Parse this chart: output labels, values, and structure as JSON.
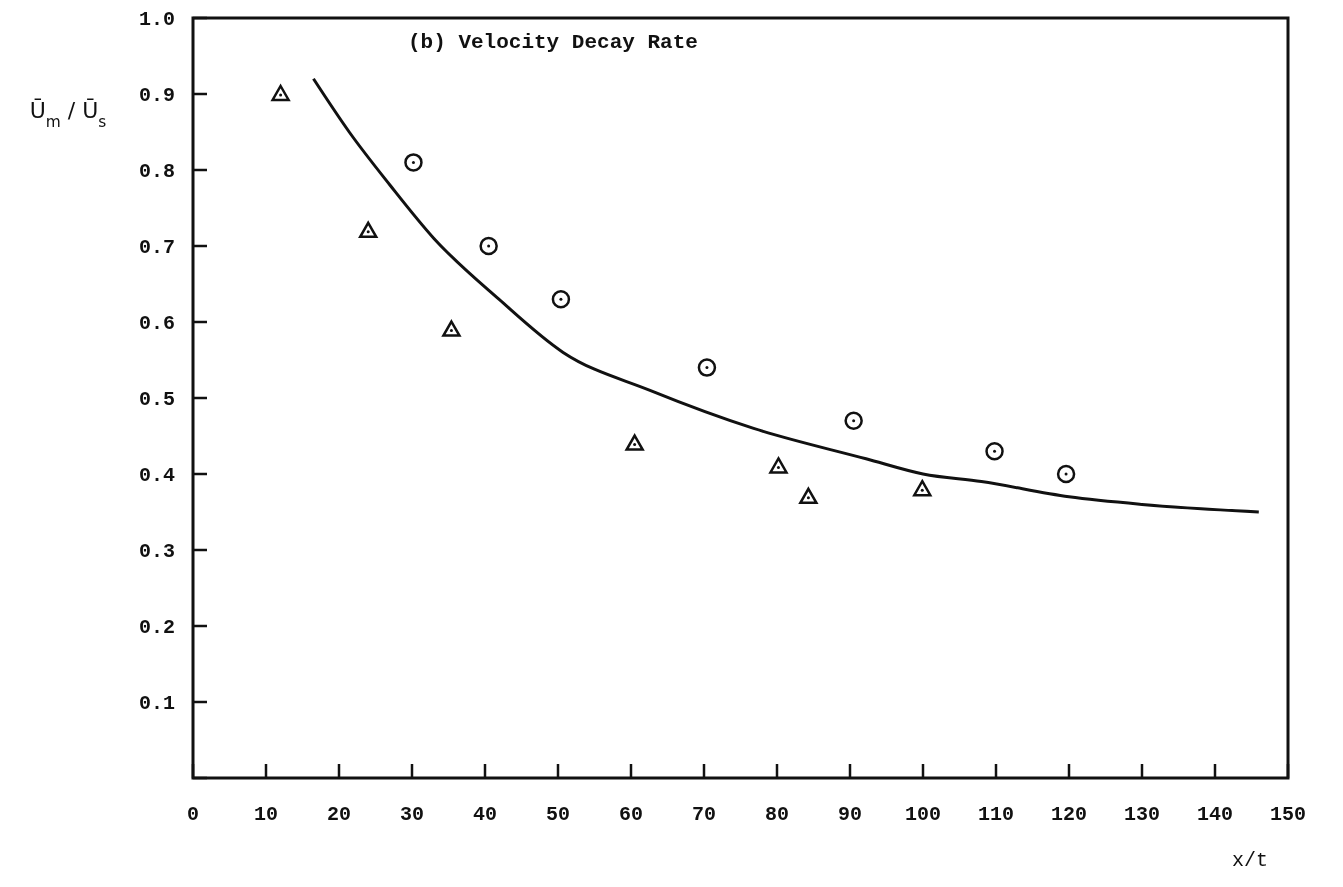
{
  "chart_data": {
    "type": "scatter",
    "title": "(b)  Velocity Decay Rate",
    "xlabel": "x/t",
    "ylabel": "Ū$_{m}$ / Ū$_{s}$",
    "xlim": [
      0,
      150
    ],
    "ylim": [
      0,
      1.0
    ],
    "xticks": [
      0,
      10,
      20,
      30,
      40,
      50,
      60,
      70,
      80,
      90,
      100,
      110,
      120,
      130,
      140,
      150
    ],
    "yticks": [
      {
        "value": 0,
        "label": null
      },
      0.1,
      0.2,
      0.3,
      0.4,
      0.5,
      0.6,
      0.7,
      0.8,
      0.9,
      "1.0"
    ],
    "grid": false,
    "series": [
      {
        "marker": "triangle",
        "color": "#111111",
        "x": [
          12,
          24,
          35.4,
          60.5,
          80.2,
          84.3,
          99.9
        ],
        "values": [
          0.9,
          0.72,
          0.59,
          0.44,
          0.41,
          0.37,
          0.38
        ]
      },
      {
        "marker": "circle",
        "color": "#111111",
        "x": [
          30.2,
          40.5,
          50.4,
          70.4,
          90.5,
          109.8,
          119.6
        ],
        "values": [
          0.81,
          0.7,
          0.63,
          0.54,
          0.47,
          0.43,
          0.4
        ]
      },
      {
        "type": "line",
        "marker": "none",
        "line_style": "solid",
        "color": "#111111",
        "x": [
          16.5,
          21.4,
          27,
          33,
          41.9,
          50.7,
          62.6,
          76.8,
          92.2,
          100,
          108,
          120,
          130,
          146
        ],
        "values": [
          0.92,
          0.85,
          0.78,
          0.71,
          0.63,
          0.56,
          0.51,
          0.46,
          0.42,
          0.4,
          0.39,
          0.37,
          0.36,
          0.35
        ]
      }
    ]
  }
}
